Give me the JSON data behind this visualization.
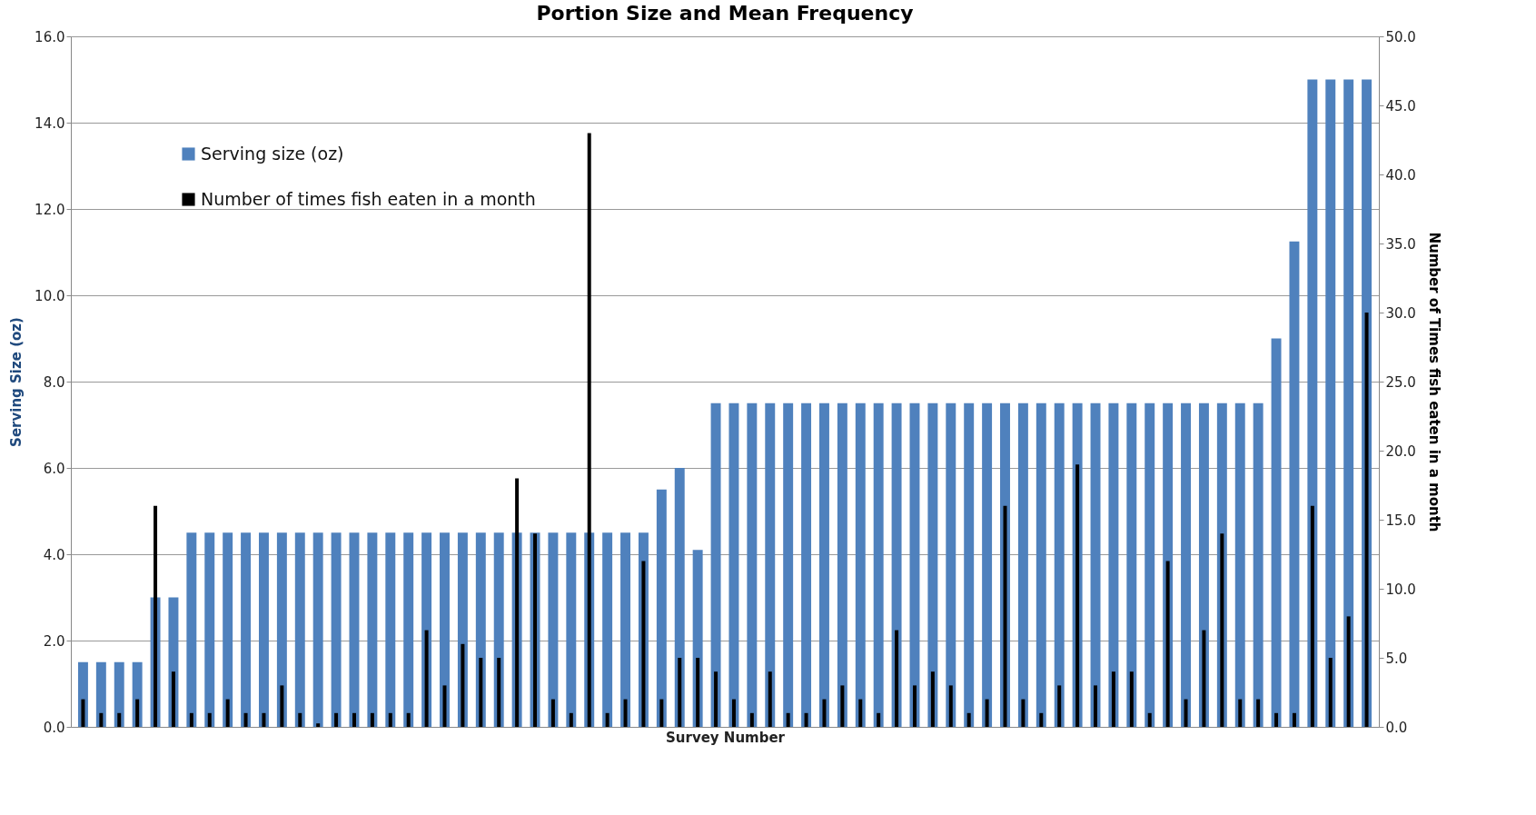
{
  "chart_data": {
    "type": "bar",
    "title": "Portion Size and Mean Frequency",
    "xlabel": "Survey Number",
    "ylabel": "Serving Size (oz)",
    "y2label": "Number of Times fish eaten in a month",
    "categories": [
      null,
      null,
      null,
      null,
      null,
      null,
      null,
      null,
      null,
      null,
      null,
      null,
      null,
      null,
      null,
      null,
      null,
      null,
      null,
      null,
      null,
      null,
      null,
      null,
      null,
      null,
      null,
      null,
      null,
      null,
      null,
      null,
      null,
      null,
      null,
      null,
      null,
      null,
      null,
      null,
      null,
      null,
      null,
      null,
      null,
      null,
      null,
      null,
      null,
      null,
      null,
      null,
      null,
      null,
      null,
      null,
      null,
      null,
      null,
      null,
      null,
      null,
      null,
      null,
      null,
      null,
      null,
      null,
      null,
      null,
      null,
      null
    ],
    "series": [
      {
        "name": "Serving size (oz)",
        "color": "#4f81bd",
        "values": [
          1.5,
          1.5,
          1.5,
          1.5,
          3.0,
          3.0,
          4.5,
          4.5,
          4.5,
          4.5,
          4.5,
          4.5,
          4.5,
          4.5,
          4.5,
          4.5,
          4.5,
          4.5,
          4.5,
          4.5,
          4.5,
          4.5,
          4.5,
          4.5,
          4.5,
          4.5,
          4.5,
          4.5,
          4.5,
          4.5,
          4.5,
          4.5,
          5.5,
          6.0,
          4.1,
          7.5,
          7.5,
          7.5,
          7.5,
          7.5,
          7.5,
          7.5,
          7.5,
          7.5,
          7.5,
          7.5,
          7.5,
          7.5,
          7.5,
          7.5,
          7.5,
          7.5,
          7.5,
          7.5,
          7.5,
          7.5,
          7.5,
          7.5,
          7.5,
          7.5,
          7.5,
          7.5,
          7.5,
          7.5,
          7.5,
          7.5,
          9.0,
          11.25,
          15.0,
          15.0,
          15.0,
          15.0
        ]
      },
      {
        "name": "Number of times fish eaten in a month",
        "color": "#000000",
        "axis": "y2",
        "values": [
          2,
          1,
          1,
          2,
          16,
          4,
          1,
          1,
          2,
          1,
          1,
          3,
          1,
          0.25,
          1,
          1,
          1,
          1,
          1,
          7,
          3,
          6,
          5,
          5,
          18,
          14,
          2,
          1,
          43,
          1,
          2,
          12,
          2,
          5,
          5,
          4,
          2,
          1,
          4,
          1,
          1,
          2,
          3,
          2,
          1,
          7,
          3,
          4,
          3,
          1,
          2,
          16,
          2,
          1,
          3,
          19,
          3,
          4,
          4,
          1,
          12,
          2,
          7,
          14,
          2,
          2,
          1,
          1,
          16,
          5,
          8,
          30
        ]
      }
    ],
    "ylim": [
      0,
      16
    ],
    "yticks": [
      {
        "value": 0,
        "label": "0.0"
      },
      {
        "value": 2,
        "label": "2.0"
      },
      {
        "value": 4,
        "label": "4.0"
      },
      {
        "value": 6,
        "label": "6.0"
      },
      {
        "value": 8,
        "label": "8.0"
      },
      {
        "value": 10,
        "label": "10.0"
      },
      {
        "value": 12,
        "label": "12.0"
      },
      {
        "value": 14,
        "label": "14.0"
      },
      {
        "value": 16,
        "label": "16.0"
      }
    ],
    "y2lim": [
      0,
      50
    ],
    "y2ticks": [
      {
        "value": 0,
        "label": "0.0"
      },
      {
        "value": 5,
        "label": "5.0"
      },
      {
        "value": 10,
        "label": "10.0"
      },
      {
        "value": 15,
        "label": "15.0"
      },
      {
        "value": 20,
        "label": "20.0"
      },
      {
        "value": 25,
        "label": "25.0"
      },
      {
        "value": 30,
        "label": "30.0"
      },
      {
        "value": 35,
        "label": "35.0"
      },
      {
        "value": 40,
        "label": "40.0"
      },
      {
        "value": 45,
        "label": "45.0"
      },
      {
        "value": 50,
        "label": "50.0"
      }
    ],
    "grid": "y",
    "legend": "top left"
  }
}
